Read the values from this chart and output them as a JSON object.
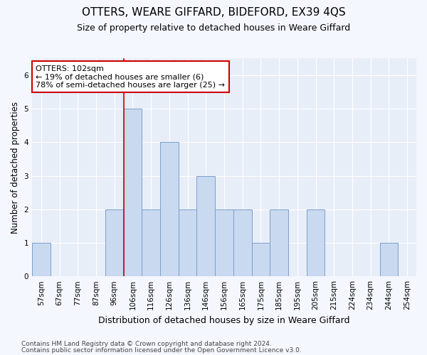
{
  "title": "OTTERS, WEARE GIFFARD, BIDEFORD, EX39 4QS",
  "subtitle": "Size of property relative to detached houses in Weare Giffard",
  "xlabel": "Distribution of detached houses by size in Weare Giffard",
  "ylabel": "Number of detached properties",
  "categories": [
    "57sqm",
    "67sqm",
    "77sqm",
    "87sqm",
    "96sqm",
    "106sqm",
    "116sqm",
    "126sqm",
    "136sqm",
    "146sqm",
    "156sqm",
    "165sqm",
    "175sqm",
    "185sqm",
    "195sqm",
    "205sqm",
    "215sqm",
    "224sqm",
    "234sqm",
    "244sqm",
    "254sqm"
  ],
  "values": [
    1,
    0,
    0,
    0,
    2,
    5,
    2,
    4,
    2,
    3,
    2,
    2,
    1,
    2,
    0,
    2,
    0,
    0,
    0,
    1,
    0
  ],
  "bar_color": "#c9d9f0",
  "bar_edge_color": "#7aa0cc",
  "red_line_after_index": 4,
  "highlight_line_color": "#cc0000",
  "ylim": [
    0,
    6.5
  ],
  "yticks": [
    0,
    1,
    2,
    3,
    4,
    5,
    6
  ],
  "annotation_text": "OTTERS: 102sqm\n← 19% of detached houses are smaller (6)\n78% of semi-detached houses are larger (25) →",
  "annotation_box_facecolor": "#ffffff",
  "annotation_box_edgecolor": "#cc0000",
  "footnote1": "Contains HM Land Registry data © Crown copyright and database right 2024.",
  "footnote2": "Contains public sector information licensed under the Open Government Licence v3.0.",
  "plot_bg_color": "#e8eef8",
  "fig_bg_color": "#f5f7ff",
  "grid_color": "#ffffff",
  "title_fontsize": 11,
  "subtitle_fontsize": 9,
  "xlabel_fontsize": 9,
  "ylabel_fontsize": 8.5,
  "tick_fontsize": 7.5,
  "annotation_fontsize": 8,
  "footnote_fontsize": 6.5
}
